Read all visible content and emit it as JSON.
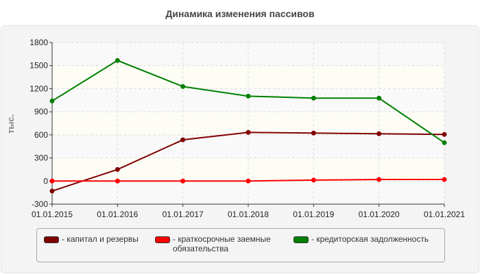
{
  "chart_data": {
    "type": "line",
    "title": "Динамика изменения пассивов",
    "ylabel": "тыс.",
    "xlabel": "",
    "categories": [
      "01.01.2015",
      "01.01.2016",
      "01.01.2017",
      "01.01.2018",
      "01.01.2019",
      "01.01.2020",
      "01.01.2021"
    ],
    "ylim": [
      -300,
      1800
    ],
    "yticks": [
      -300,
      0,
      300,
      600,
      900,
      1200,
      1500,
      1800
    ],
    "grid": true,
    "legend_position": "bottom",
    "series": [
      {
        "name": "- капитал и резервы",
        "color": "#800000",
        "values": [
          -130,
          150,
          535,
          632,
          623,
          614,
          605
        ]
      },
      {
        "name": "- краткосрочные заемные обязательства",
        "color": "#ff0000",
        "values": [
          0,
          0,
          0,
          0,
          12,
          20,
          20
        ]
      },
      {
        "name": "- кредиторская задолженность",
        "color": "#008000",
        "values": [
          1040,
          1566,
          1228,
          1103,
          1077,
          1077,
          498
        ]
      }
    ]
  }
}
